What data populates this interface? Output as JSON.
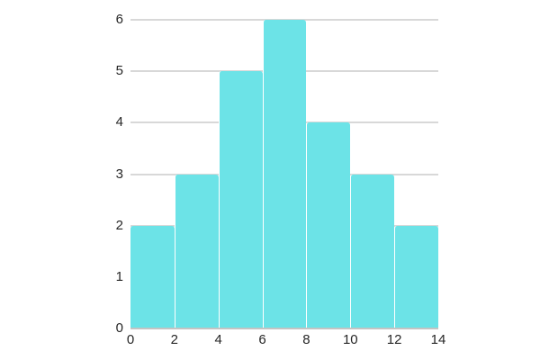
{
  "chart_data": {
    "type": "bar",
    "chart_kind": "histogram",
    "title": "",
    "xlabel": "",
    "ylabel": "",
    "bin_edges": [
      0,
      2,
      4,
      6,
      8,
      10,
      12,
      14
    ],
    "categories": [
      "0-2",
      "2-4",
      "4-6",
      "6-8",
      "8-10",
      "10-12",
      "12-14"
    ],
    "values": [
      2,
      3,
      5,
      6,
      4,
      3,
      2
    ],
    "xlim": [
      0,
      14
    ],
    "ylim": [
      0,
      6
    ],
    "xticks": [
      0,
      2,
      4,
      6,
      8,
      10,
      12,
      14
    ],
    "yticks": [
      0,
      1,
      2,
      3,
      4,
      5,
      6
    ],
    "grid": "horizontal",
    "legend": "none",
    "colors": {
      "bar_fill": "#6ce3e7",
      "bar_separator": "#ffffff",
      "gridline": "#d8d8d8",
      "axis_line": "#c4c4c4",
      "tick_label": "#262626",
      "background": "#ffffff"
    }
  }
}
